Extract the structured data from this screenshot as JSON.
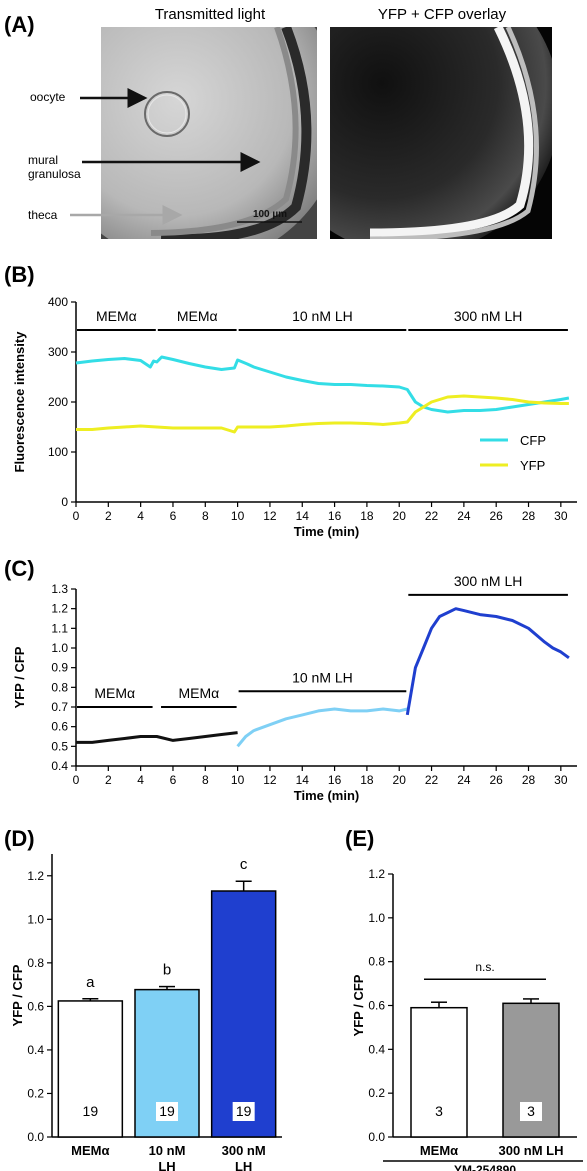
{
  "panels": {
    "A": "(A)",
    "B": "(B)",
    "C": "(C)",
    "D": "(D)",
    "E": "(E)"
  },
  "panel_a": {
    "left_title": "Transmitted light",
    "right_title": "YFP + CFP overlay",
    "labels": {
      "oocyte": "oocyte",
      "mural": "mural",
      "granulosa": "granulosa",
      "theca": "theca"
    },
    "scale_bar": "100 µm"
  },
  "chart_data": [
    {
      "id": "B",
      "type": "line",
      "xlabel": "Time (min)",
      "ylabel": "Fluorescence intensity",
      "xlim": [
        0,
        31
      ],
      "ylim": [
        0,
        400
      ],
      "xticks": [
        0,
        2,
        4,
        6,
        8,
        10,
        12,
        14,
        16,
        18,
        20,
        22,
        24,
        26,
        28,
        30
      ],
      "yticks": [
        0,
        100,
        200,
        300,
        400
      ],
      "conditions": [
        {
          "label": "MEMα",
          "start": 0,
          "end": 5
        },
        {
          "label": "MEMα",
          "start": 5,
          "end": 10
        },
        {
          "label": "10 nM LH",
          "start": 10,
          "end": 20.5
        },
        {
          "label": "300 nM LH",
          "start": 20.5,
          "end": 30.5
        }
      ],
      "legend_position": "right",
      "series": [
        {
          "name": "CFP",
          "color": "#33dde6",
          "x": [
            0,
            1,
            2,
            3,
            4,
            4.6,
            4.8,
            5,
            5.3,
            6,
            7,
            8,
            9,
            9.8,
            10,
            10.3,
            10.6,
            11,
            12,
            13,
            14,
            15,
            16,
            17,
            18,
            19,
            20,
            20.5,
            21,
            21.5,
            22,
            23,
            24,
            25,
            26,
            27,
            28,
            29,
            30,
            30.5
          ],
          "y": [
            278,
            282,
            285,
            287,
            283,
            270,
            282,
            280,
            290,
            285,
            277,
            270,
            265,
            268,
            284,
            280,
            276,
            270,
            260,
            250,
            243,
            237,
            235,
            235,
            233,
            232,
            230,
            225,
            200,
            190,
            185,
            180,
            183,
            183,
            185,
            190,
            195,
            200,
            205,
            208
          ]
        },
        {
          "name": "YFP",
          "color": "#eeee22",
          "x": [
            0,
            1,
            2,
            3,
            4,
            5,
            6,
            7,
            8,
            9,
            9.8,
            10,
            10.3,
            11,
            12,
            13,
            14,
            15,
            16,
            17,
            18,
            19,
            20,
            20.5,
            21,
            22,
            23,
            24,
            25,
            26,
            27,
            28,
            29,
            30,
            30.5
          ],
          "y": [
            145,
            145,
            148,
            150,
            152,
            150,
            148,
            148,
            148,
            148,
            140,
            150,
            150,
            150,
            150,
            152,
            155,
            157,
            158,
            158,
            157,
            155,
            158,
            160,
            180,
            200,
            210,
            212,
            210,
            208,
            205,
            200,
            198,
            197,
            197
          ]
        }
      ]
    },
    {
      "id": "C",
      "type": "line",
      "xlabel": "Time (min)",
      "ylabel": "YFP / CFP",
      "xlim": [
        0,
        31
      ],
      "ylim": [
        0.4,
        1.3
      ],
      "xticks": [
        0,
        2,
        4,
        6,
        8,
        10,
        12,
        14,
        16,
        18,
        20,
        22,
        24,
        26,
        28,
        30
      ],
      "yticks": [
        0.4,
        0.5,
        0.6,
        0.7,
        0.8,
        0.9,
        1.0,
        1.1,
        1.2,
        1.3
      ],
      "conditions": [
        {
          "label": "MEMα",
          "start": 0,
          "end": 4.8,
          "y": 0.7
        },
        {
          "label": "MEMα",
          "start": 5.2,
          "end": 10,
          "y": 0.7
        },
        {
          "label": "10 nM LH",
          "start": 10,
          "end": 20.5,
          "y": 0.78
        },
        {
          "label": "300 nM LH",
          "start": 20.5,
          "end": 30.5,
          "y": 1.27
        }
      ],
      "series": [
        {
          "name": "MEMα",
          "color": "#111111",
          "x": [
            0,
            1,
            2,
            3,
            4,
            5,
            6,
            7,
            8,
            9,
            10
          ],
          "y": [
            0.52,
            0.52,
            0.53,
            0.54,
            0.55,
            0.55,
            0.53,
            0.54,
            0.55,
            0.56,
            0.57
          ]
        },
        {
          "name": "10 nM LH",
          "color": "#7fd0f5",
          "x": [
            10,
            10.5,
            11,
            12,
            13,
            14,
            15,
            16,
            17,
            18,
            19,
            20,
            20.5
          ],
          "y": [
            0.5,
            0.55,
            0.58,
            0.61,
            0.64,
            0.66,
            0.68,
            0.69,
            0.68,
            0.68,
            0.69,
            0.68,
            0.69
          ]
        },
        {
          "name": "300 nM LH",
          "color": "#1f3fcf",
          "x": [
            20.5,
            21,
            21.5,
            22,
            22.5,
            23,
            23.5,
            24,
            25,
            26,
            27,
            28,
            29,
            29.5,
            30,
            30.5
          ],
          "y": [
            0.66,
            0.9,
            1.0,
            1.1,
            1.16,
            1.18,
            1.2,
            1.19,
            1.17,
            1.16,
            1.14,
            1.1,
            1.03,
            1.0,
            0.98,
            0.95
          ]
        }
      ]
    },
    {
      "id": "D",
      "type": "bar",
      "ylabel": "YFP / CFP",
      "ylim": [
        0,
        1.3
      ],
      "yticks": [
        0,
        0.2,
        0.4,
        0.6,
        0.8,
        1.0,
        1.2
      ],
      "categories": [
        "MEMα",
        "10 nM\nLH",
        "300 nM\nLH"
      ],
      "values": [
        0.625,
        0.677,
        1.13
      ],
      "errors": [
        0.01,
        0.014,
        0.045
      ],
      "n": [
        "19",
        "19",
        "19"
      ],
      "letters": [
        "a",
        "b",
        "c"
      ],
      "colors": [
        "#ffffff",
        "#7fd0f5",
        "#1f3fcf"
      ]
    },
    {
      "id": "E",
      "type": "bar",
      "ylabel": "YFP / CFP",
      "ylim": [
        0,
        1.2
      ],
      "yticks": [
        0,
        0.2,
        0.4,
        0.6,
        0.8,
        1.0,
        1.2
      ],
      "categories": [
        "MEMα",
        "300 nM LH"
      ],
      "values": [
        0.59,
        0.61
      ],
      "errors": [
        0.025,
        0.02
      ],
      "n": [
        "3",
        "3"
      ],
      "colors": [
        "#ffffff",
        "#999999"
      ],
      "significance": "n.s.",
      "group_label": "YM-254890"
    }
  ]
}
